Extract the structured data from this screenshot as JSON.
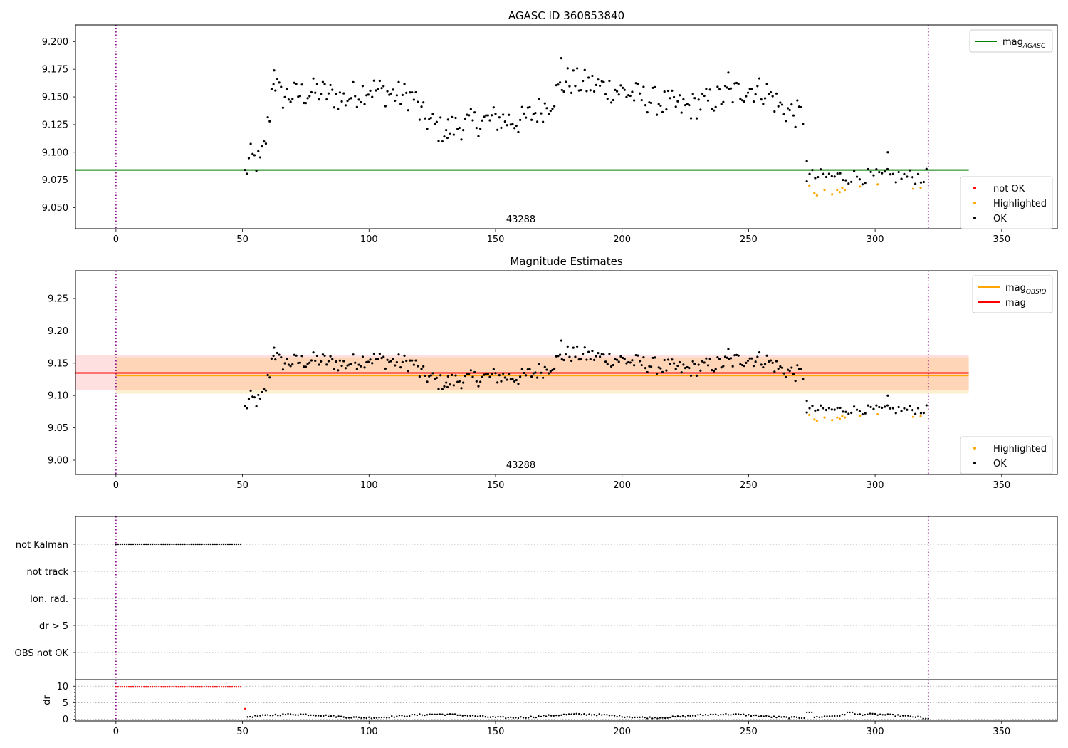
{
  "colors": {
    "ok": "#000000",
    "not_ok": "#ff0000",
    "highlighted": "#ffa500",
    "mag_agasc_line": "#008000",
    "mag_obsid_line": "#ffa500",
    "mag_line": "#ff0000",
    "obs_line": "#800080",
    "grid_dotted": "#b0b0b0"
  },
  "chart_data": [
    {
      "id": "agasc",
      "type": "scatter",
      "title": "AGASC ID 360853840",
      "xlim": [
        -16,
        372
      ],
      "ylim": [
        9.031,
        9.215
      ],
      "xticks": [
        0,
        50,
        100,
        150,
        200,
        250,
        300,
        350
      ],
      "yticks": [
        9.05,
        9.075,
        9.1,
        9.125,
        9.15,
        9.175,
        9.2
      ],
      "ytick_labels": [
        "9.050",
        "9.075",
        "9.100",
        "9.125",
        "9.150",
        "9.175",
        "9.200"
      ],
      "obsid_label": "43288",
      "obs_boundaries": [
        0,
        321
      ],
      "mag_agasc": 9.084,
      "mag_agasc_xrange": [
        -16,
        337
      ],
      "legend_top": [
        {
          "label": "mag",
          "sub": "AGASC",
          "color": "#008000"
        }
      ],
      "legend_bottom": [
        {
          "label": "not OK",
          "color": "#ff0000"
        },
        {
          "label": "Highlighted",
          "color": "#ffa500"
        },
        {
          "label": "OK",
          "color": "#000000"
        }
      ]
    },
    {
      "id": "estimates",
      "type": "scatter",
      "title": "Magnitude Estimates",
      "xlim": [
        -16,
        372
      ],
      "ylim": [
        8.978,
        9.293
      ],
      "xticks": [
        0,
        50,
        100,
        150,
        200,
        250,
        300,
        350
      ],
      "yticks": [
        9.0,
        9.05,
        9.1,
        9.15,
        9.2,
        9.25
      ],
      "ytick_labels": [
        "9.00",
        "9.05",
        "9.10",
        "9.15",
        "9.20",
        "9.25"
      ],
      "obsid_label": "43288",
      "obs_boundaries": [
        0,
        321
      ],
      "mag": 9.135,
      "mag_band": [
        9.108,
        9.162
      ],
      "mag_band_xrange": [
        -16,
        337
      ],
      "mag_obsid": 9.131,
      "mag_obsid_band": [
        9.103,
        9.159
      ],
      "mag_obsid_xrange": [
        0,
        337
      ],
      "legend_top": [
        {
          "label": "mag",
          "sub": "OBSID",
          "color": "#ffa500"
        },
        {
          "label": "mag",
          "sub": "",
          "color": "#ff0000"
        }
      ],
      "legend_bottom": [
        {
          "label": "Highlighted",
          "color": "#ffa500"
        },
        {
          "label": "OK",
          "color": "#000000"
        }
      ]
    },
    {
      "id": "flags",
      "type": "scatter",
      "categories": [
        "not Kalman",
        "not track",
        "Ion. rad.",
        "dr > 5",
        "OBS not OK"
      ],
      "xlim": [
        -16,
        372
      ],
      "not_kalman_range": [
        0,
        50
      ],
      "obs_boundaries": [
        0,
        321
      ]
    },
    {
      "id": "dr",
      "type": "scatter",
      "ylabel": "dr",
      "xlim": [
        -16,
        372
      ],
      "ylim": [
        -0.5,
        12
      ],
      "xticks": [
        0,
        50,
        100,
        150,
        200,
        250,
        300,
        350
      ],
      "yticks": [
        0,
        5,
        10
      ],
      "obs_boundaries": [
        0,
        321
      ],
      "red_points": {
        "x_range": [
          0,
          50
        ],
        "value": 9.8,
        "extra": [
          [
            51,
            3.2
          ]
        ]
      }
    }
  ]
}
